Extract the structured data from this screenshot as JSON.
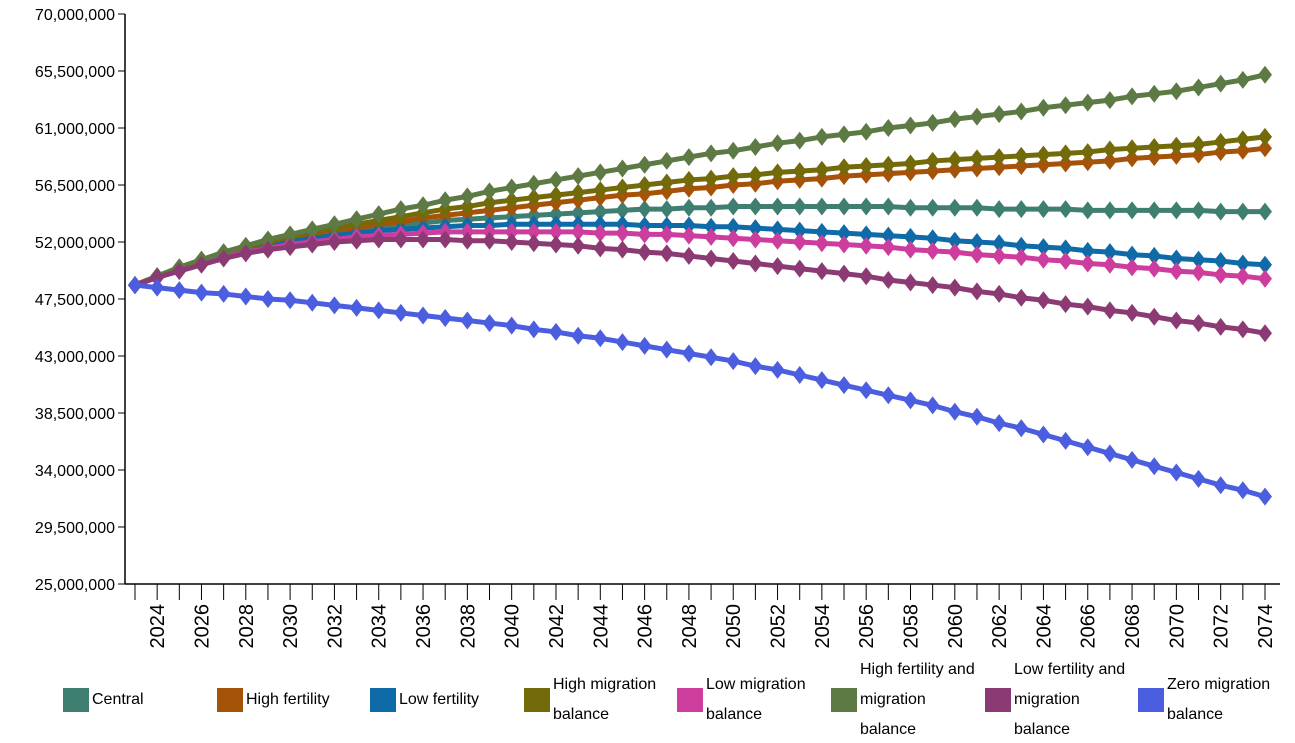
{
  "chart_data": {
    "type": "line",
    "x": [
      2023,
      2024,
      2025,
      2026,
      2027,
      2028,
      2029,
      2030,
      2031,
      2032,
      2033,
      2034,
      2035,
      2036,
      2037,
      2038,
      2039,
      2040,
      2041,
      2042,
      2043,
      2044,
      2045,
      2046,
      2047,
      2048,
      2049,
      2050,
      2051,
      2052,
      2053,
      2054,
      2055,
      2056,
      2057,
      2058,
      2059,
      2060,
      2061,
      2062,
      2063,
      2064,
      2065,
      2066,
      2067,
      2068,
      2069,
      2070,
      2071,
      2072,
      2073,
      2074
    ],
    "xlim": [
      2023,
      2074
    ],
    "xticks": [
      2024,
      2026,
      2028,
      2030,
      2032,
      2034,
      2036,
      2038,
      2040,
      2042,
      2044,
      2046,
      2048,
      2050,
      2052,
      2054,
      2056,
      2058,
      2060,
      2062,
      2064,
      2066,
      2068,
      2070,
      2072,
      2074
    ],
    "ylim": [
      25000000,
      70000000
    ],
    "yticks": [
      {
        "value": 25000000,
        "label": "25,000,000"
      },
      {
        "value": 29500000,
        "label": "29,500,000"
      },
      {
        "value": 34000000,
        "label": "34,000,000"
      },
      {
        "value": 38500000,
        "label": "38,500,000"
      },
      {
        "value": 43000000,
        "label": "43,000,000"
      },
      {
        "value": 47500000,
        "label": "47,500,000"
      },
      {
        "value": 52000000,
        "label": "52,000,000"
      },
      {
        "value": 56500000,
        "label": "56,500,000"
      },
      {
        "value": 61000000,
        "label": "61,000,000"
      },
      {
        "value": 65500000,
        "label": "65,500,000"
      },
      {
        "value": 70000000,
        "label": "70,000,000"
      }
    ],
    "series": [
      {
        "name": "Central",
        "color": "#3f7f72",
        "values": [
          48600000,
          49300000,
          49900000,
          50500000,
          51000000,
          51400000,
          51800000,
          52100000,
          52400000,
          52700000,
          52900000,
          53100000,
          53300000,
          53500000,
          53700000,
          53800000,
          53900000,
          54000000,
          54100000,
          54200000,
          54300000,
          54400000,
          54500000,
          54600000,
          54600000,
          54700000,
          54700000,
          54800000,
          54800000,
          54800000,
          54800000,
          54800000,
          54800000,
          54800000,
          54800000,
          54700000,
          54700000,
          54700000,
          54700000,
          54600000,
          54600000,
          54600000,
          54600000,
          54500000,
          54500000,
          54500000,
          54500000,
          54500000,
          54500000,
          54400000,
          54400000,
          54400000
        ]
      },
      {
        "name": "High fertility",
        "color": "#a6530a",
        "values": [
          48600000,
          49300000,
          49900000,
          50500000,
          51000000,
          51500000,
          51900000,
          52300000,
          52600000,
          52900000,
          53100000,
          53400000,
          53600000,
          53900000,
          54100000,
          54300000,
          54500000,
          54700000,
          54900000,
          55100000,
          55300000,
          55500000,
          55700000,
          55800000,
          56000000,
          56200000,
          56300000,
          56500000,
          56600000,
          56800000,
          56900000,
          57000000,
          57200000,
          57300000,
          57400000,
          57500000,
          57600000,
          57700000,
          57800000,
          57900000,
          58000000,
          58100000,
          58200000,
          58300000,
          58400000,
          58600000,
          58700000,
          58800000,
          58900000,
          59100000,
          59200000,
          59400000
        ]
      },
      {
        "name": "Low fertility",
        "color": "#0f6aa8",
        "values": [
          48600000,
          49200000,
          49800000,
          50400000,
          50900000,
          51300000,
          51700000,
          52000000,
          52300000,
          52500000,
          52700000,
          52900000,
          53000000,
          53100000,
          53200000,
          53300000,
          53300000,
          53400000,
          53400000,
          53400000,
          53400000,
          53400000,
          53400000,
          53300000,
          53300000,
          53300000,
          53200000,
          53200000,
          53100000,
          53000000,
          52900000,
          52800000,
          52700000,
          52600000,
          52500000,
          52400000,
          52300000,
          52100000,
          52000000,
          51900000,
          51700000,
          51600000,
          51500000,
          51300000,
          51200000,
          51000000,
          50900000,
          50700000,
          50600000,
          50500000,
          50300000,
          50200000
        ]
      },
      {
        "name": "High migration balance",
        "color": "#736b0a",
        "values": [
          48600000,
          49300000,
          50000000,
          50600000,
          51100000,
          51600000,
          52000000,
          52400000,
          52800000,
          53100000,
          53400000,
          53700000,
          54000000,
          54300000,
          54600000,
          54800000,
          55100000,
          55300000,
          55500000,
          55700000,
          55900000,
          56100000,
          56300000,
          56500000,
          56700000,
          56900000,
          57000000,
          57200000,
          57300000,
          57500000,
          57600000,
          57700000,
          57900000,
          58000000,
          58100000,
          58200000,
          58400000,
          58500000,
          58600000,
          58700000,
          58800000,
          58900000,
          59000000,
          59100000,
          59300000,
          59400000,
          59500000,
          59600000,
          59700000,
          59900000,
          60100000,
          60300000
        ]
      },
      {
        "name": "Low migration balance",
        "color": "#cc3d9e",
        "values": [
          48600000,
          49200000,
          49800000,
          50300000,
          50800000,
          51200000,
          51500000,
          51800000,
          52000000,
          52200000,
          52400000,
          52500000,
          52600000,
          52700000,
          52800000,
          52800000,
          52800000,
          52800000,
          52800000,
          52800000,
          52800000,
          52700000,
          52700000,
          52600000,
          52600000,
          52500000,
          52400000,
          52300000,
          52200000,
          52100000,
          52000000,
          51900000,
          51800000,
          51700000,
          51600000,
          51400000,
          51300000,
          51200000,
          51000000,
          50900000,
          50800000,
          50600000,
          50500000,
          50300000,
          50200000,
          50000000,
          49900000,
          49700000,
          49600000,
          49400000,
          49300000,
          49100000
        ]
      },
      {
        "name": "High fertility and migration balance",
        "color": "#5d7a44",
        "values": [
          48600000,
          49300000,
          50000000,
          50600000,
          51200000,
          51700000,
          52200000,
          52600000,
          53000000,
          53400000,
          53800000,
          54200000,
          54600000,
          54900000,
          55300000,
          55600000,
          56000000,
          56300000,
          56600000,
          56900000,
          57200000,
          57500000,
          57800000,
          58100000,
          58400000,
          58700000,
          59000000,
          59200000,
          59500000,
          59800000,
          60000000,
          60300000,
          60500000,
          60700000,
          61000000,
          61200000,
          61400000,
          61700000,
          61900000,
          62100000,
          62300000,
          62600000,
          62800000,
          63000000,
          63200000,
          63500000,
          63700000,
          63900000,
          64200000,
          64500000,
          64800000,
          65200000
        ]
      },
      {
        "name": "Low fertility and migration balance",
        "color": "#8b3a74",
        "values": [
          48600000,
          49200000,
          49700000,
          50200000,
          50700000,
          51100000,
          51400000,
          51600000,
          51800000,
          52000000,
          52100000,
          52200000,
          52200000,
          52200000,
          52200000,
          52100000,
          52100000,
          52000000,
          51900000,
          51800000,
          51700000,
          51500000,
          51400000,
          51200000,
          51100000,
          50900000,
          50700000,
          50500000,
          50300000,
          50100000,
          49900000,
          49700000,
          49500000,
          49300000,
          49000000,
          48800000,
          48600000,
          48400000,
          48100000,
          47900000,
          47600000,
          47400000,
          47100000,
          46900000,
          46600000,
          46400000,
          46100000,
          45800000,
          45600000,
          45300000,
          45100000,
          44800000
        ]
      },
      {
        "name": "Zero migration balance",
        "color": "#4b5ee0",
        "values": [
          48600000,
          48400000,
          48200000,
          48000000,
          47900000,
          47700000,
          47500000,
          47400000,
          47200000,
          47000000,
          46800000,
          46600000,
          46400000,
          46200000,
          46000000,
          45800000,
          45600000,
          45400000,
          45100000,
          44900000,
          44600000,
          44400000,
          44100000,
          43800000,
          43500000,
          43200000,
          42900000,
          42600000,
          42200000,
          41900000,
          41500000,
          41100000,
          40700000,
          40300000,
          39900000,
          39500000,
          39100000,
          38600000,
          38200000,
          37700000,
          37300000,
          36800000,
          36300000,
          35800000,
          35300000,
          34800000,
          34300000,
          33800000,
          33300000,
          32800000,
          32400000,
          31900000
        ]
      }
    ]
  }
}
